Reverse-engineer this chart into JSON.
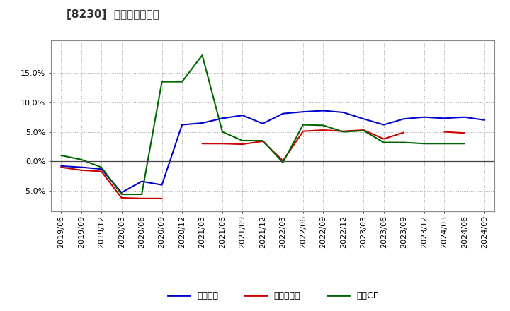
{
  "title": "[8230]  マージンの推移",
  "title_fontsize": 11,
  "background_color": "#ffffff",
  "plot_background_color": "#ffffff",
  "grid_color": "#aaaaaa",
  "x_labels": [
    "2019/06",
    "2019/09",
    "2019/12",
    "2020/03",
    "2020/06",
    "2020/09",
    "2020/12",
    "2021/03",
    "2021/06",
    "2021/09",
    "2021/12",
    "2022/03",
    "2022/06",
    "2022/09",
    "2022/12",
    "2023/03",
    "2023/06",
    "2023/09",
    "2023/12",
    "2024/03",
    "2024/06",
    "2024/09"
  ],
  "series": {
    "経常利益": {
      "color": "#0000cc",
      "values": [
        -0.8,
        -1.0,
        -1.3,
        -5.3,
        -3.4,
        -4.0,
        6.2,
        6.5,
        7.3,
        7.8,
        6.4,
        8.1,
        8.4,
        8.6,
        8.3,
        7.2,
        6.2,
        7.2,
        7.5,
        7.3,
        7.5,
        7.0
      ]
    },
    "当期純利益": {
      "color": "#cc0000",
      "values": [
        -1.0,
        -1.5,
        -1.7,
        -6.2,
        -6.3,
        -6.3,
        null,
        3.0,
        3.0,
        2.9,
        3.4,
        0.1,
        5.1,
        5.3,
        5.1,
        5.3,
        3.8,
        4.9,
        null,
        5.0,
        4.8,
        null
      ]
    },
    "営業CF": {
      "color": "#006600",
      "values": [
        1.0,
        0.3,
        -1.0,
        -5.6,
        -5.6,
        13.5,
        13.5,
        18.0,
        5.0,
        3.5,
        3.5,
        -0.2,
        6.2,
        6.1,
        5.0,
        5.2,
        3.2,
        3.2,
        3.0,
        3.0,
        3.0,
        null
      ]
    }
  },
  "ylim": [
    -8.5,
    20.5
  ],
  "yticks": [
    -5.0,
    0.0,
    5.0,
    10.0,
    15.0
  ],
  "legend_labels": [
    "経常利益",
    "当期純利益",
    "営業CF"
  ],
  "legend_colors": [
    "#0000cc",
    "#cc0000",
    "#006600"
  ]
}
